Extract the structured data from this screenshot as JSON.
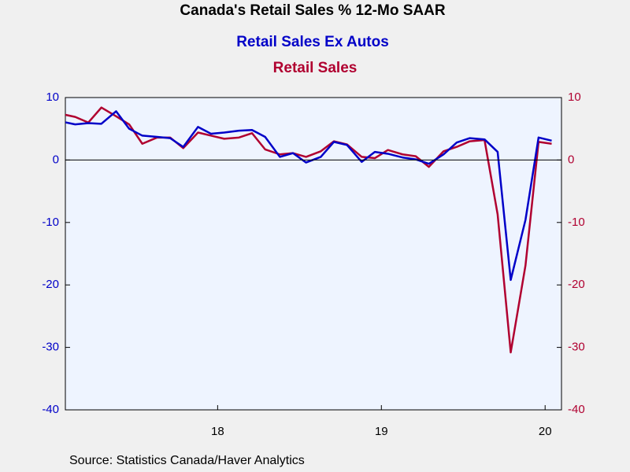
{
  "chart_data": {
    "type": "line",
    "title": "Canada's Retail Sales % 12-Mo SAAR",
    "source": "Source:  Statistics Canada/Haver Analytics",
    "x": [
      2017.54,
      2017.63,
      2017.71,
      2017.79,
      2017.88,
      2017.96,
      2018.04,
      2018.13,
      2018.21,
      2018.29,
      2018.38,
      2018.46,
      2018.54,
      2018.63,
      2018.71,
      2018.79,
      2018.88,
      2018.96,
      2019.04,
      2019.13,
      2019.21,
      2019.29,
      2019.38,
      2019.46,
      2019.54,
      2019.63,
      2019.71,
      2019.79,
      2019.88,
      2019.96,
      2020.04,
      2020.13,
      2020.21,
      2020.29,
      2020.38,
      2020.46,
      2020.54
    ],
    "series": [
      {
        "name": "Retail Sales Ex Autos",
        "color": "#0000c8",
        "axis": "y",
        "values": [
          6.2,
          5.7,
          5.9,
          5.8,
          7.8,
          5.0,
          3.9,
          3.7,
          3.5,
          2.1,
          5.3,
          4.2,
          4.4,
          4.7,
          4.8,
          3.7,
          0.5,
          1.1,
          -0.4,
          0.5,
          2.9,
          2.4,
          -0.3,
          1.3,
          1.0,
          0.4,
          0.1,
          -0.6,
          0.9,
          2.8,
          3.5,
          3.3,
          1.3,
          -19.2,
          -9.6,
          3.6,
          3.1
        ]
      },
      {
        "name": "Retail Sales",
        "color": "#b00030",
        "axis": "y2",
        "values": [
          7.4,
          6.9,
          6.0,
          8.4,
          7.0,
          5.7,
          2.6,
          3.6,
          3.6,
          1.9,
          4.4,
          3.9,
          3.4,
          3.6,
          4.3,
          1.7,
          0.9,
          1.1,
          0.5,
          1.4,
          3.0,
          2.5,
          0.5,
          0.3,
          1.6,
          0.9,
          0.6,
          -1.1,
          1.4,
          2.1,
          3.0,
          3.2,
          -8.7,
          -30.8,
          -16.9,
          2.9,
          2.6
        ]
      }
    ],
    "xlim": [
      2017.57,
      2020.6
    ],
    "xticks": [
      {
        "value": 2018.5,
        "label": "18"
      },
      {
        "value": 2019.5,
        "label": "19"
      },
      {
        "value": 2020.5,
        "label": "20"
      }
    ],
    "ylim": [
      -40,
      10
    ],
    "yticks": [
      10,
      0,
      -10,
      -20,
      -30,
      -40
    ],
    "y2lim": [
      -40,
      10
    ],
    "y2ticks": [
      10,
      0,
      -10,
      -20,
      -30,
      -40
    ],
    "zero_line": true
  }
}
